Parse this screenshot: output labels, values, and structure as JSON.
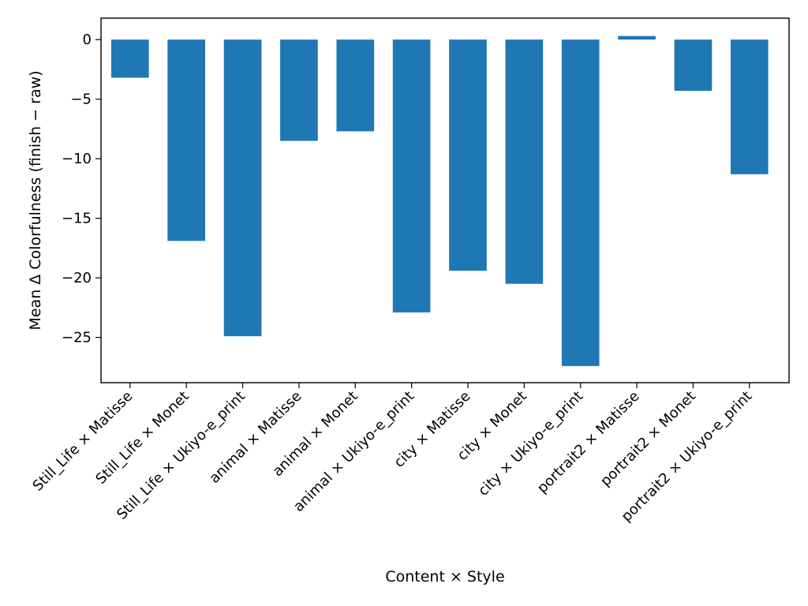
{
  "chart_data": {
    "type": "bar",
    "title": "",
    "xlabel": "Content × Style",
    "ylabel": "Mean Δ Colorfulness (finish − raw)",
    "categories": [
      "Still_Life × Matisse",
      "Still_Life × Monet",
      "Still_Life × Ukiyo-e_print",
      "animal × Matisse",
      "animal × Monet",
      "animal × Ukiyo-e_print",
      "city × Matisse",
      "city × Monet",
      "city × Ukiyo-e_print",
      "portrait2 × Matisse",
      "portrait2 × Monet",
      "portrait2 × Ukiyo-e_print"
    ],
    "values": [
      -3.2,
      -16.9,
      -24.9,
      -8.5,
      -7.7,
      -22.9,
      -19.4,
      -20.5,
      -27.4,
      0.3,
      -4.3,
      -11.3
    ],
    "ylim": [
      -28.8,
      1.8
    ],
    "yticks": [
      0,
      -5,
      -10,
      -15,
      -20,
      -25
    ],
    "ytick_labels": [
      "0",
      "−5",
      "−10",
      "−15",
      "−20",
      "−25"
    ],
    "bar_color": "#1f77b4",
    "grid": false,
    "legend": "none"
  }
}
